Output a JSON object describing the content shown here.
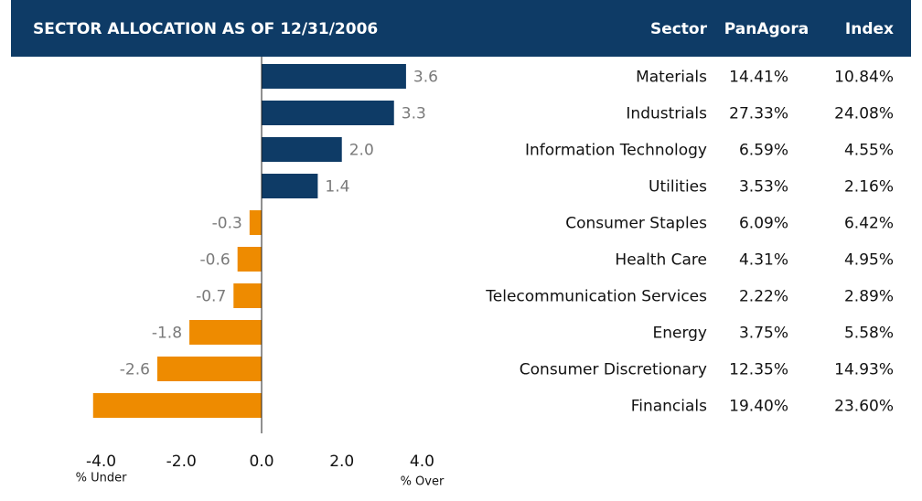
{
  "chart_data": {
    "type": "bar",
    "orientation": "horizontal",
    "title": "SECTOR ALLOCATION AS OF 12/31/2006",
    "categories": [
      "Materials",
      "Industrials",
      "Information Technology",
      "Utilities",
      "Consumer Staples",
      "Health Care",
      "Telecommunication Services",
      "Energy",
      "Consumer Discretionary",
      "Financials"
    ],
    "values": [
      3.6,
      3.3,
      2.0,
      1.4,
      -0.3,
      -0.6,
      -0.7,
      -1.8,
      -2.6,
      -4.2
    ],
    "value_labels": [
      "3.6",
      "3.3",
      "2.0",
      "1.4",
      "-0.3",
      "-0.6",
      "-0.7",
      "-1.8",
      "-2.6",
      null
    ],
    "positive_color": "#0e3b66",
    "negative_color": "#ee8b00",
    "xlim": [
      -4.4,
      4.4
    ],
    "xticks": [
      {
        "value": -4,
        "label": "-4.0"
      },
      {
        "value": -2,
        "label": "-2.0"
      },
      {
        "value": 0,
        "label": "0.0"
      },
      {
        "value": 2,
        "label": "2.0"
      },
      {
        "value": 4,
        "label": "4.0"
      }
    ],
    "x_label_left": "% Under",
    "x_label_right": "% Over",
    "table": {
      "header": [
        "Sector",
        "PanAgora",
        "Index"
      ],
      "rows": [
        [
          "14.41%",
          "10.84%"
        ],
        [
          "27.33%",
          "24.08%"
        ],
        [
          "6.59%",
          "4.55%"
        ],
        [
          "3.53%",
          "2.16%"
        ],
        [
          "6.09%",
          "6.42%"
        ],
        [
          "4.31%",
          "4.95%"
        ],
        [
          "2.22%",
          "2.89%"
        ],
        [
          "3.75%",
          "5.58%"
        ],
        [
          "12.35%",
          "14.93%"
        ],
        [
          "19.40%",
          "23.60%"
        ]
      ]
    }
  }
}
